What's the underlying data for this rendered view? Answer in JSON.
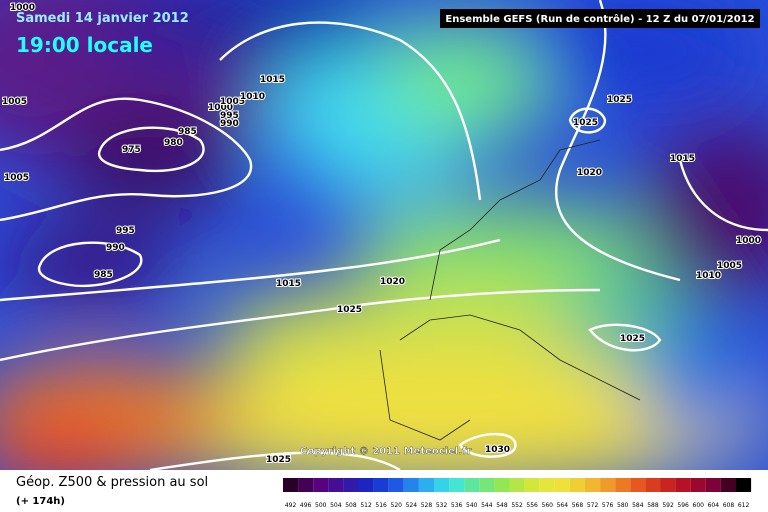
{
  "header": {
    "date": "Samedi 14 janvier 2012",
    "time": "19:00 locale",
    "run": "Ensemble GEFS (Run de contrôle)  -  12 Z du 07/01/2012"
  },
  "copyright": "Copyright © 2011 Meteociel.fr",
  "isobars": [
    1000,
    1005,
    1005,
    975,
    980,
    985,
    990,
    995,
    1000,
    1005,
    1010,
    1015,
    995,
    990,
    985,
    1015,
    1020,
    1025,
    1025,
    1025,
    1020,
    1015,
    1000,
    1005,
    1010,
    1025,
    1025,
    1030
  ],
  "footer": {
    "title": "Géop. Z500 & pression au sol",
    "lead": "(+ 174h)"
  },
  "legend": {
    "levels": [
      492,
      496,
      500,
      504,
      508,
      512,
      516,
      520,
      524,
      528,
      532,
      536,
      540,
      544,
      548,
      552,
      556,
      560,
      564,
      568,
      572,
      576,
      580,
      584,
      588,
      592,
      596,
      600,
      604,
      608,
      612
    ]
  }
}
